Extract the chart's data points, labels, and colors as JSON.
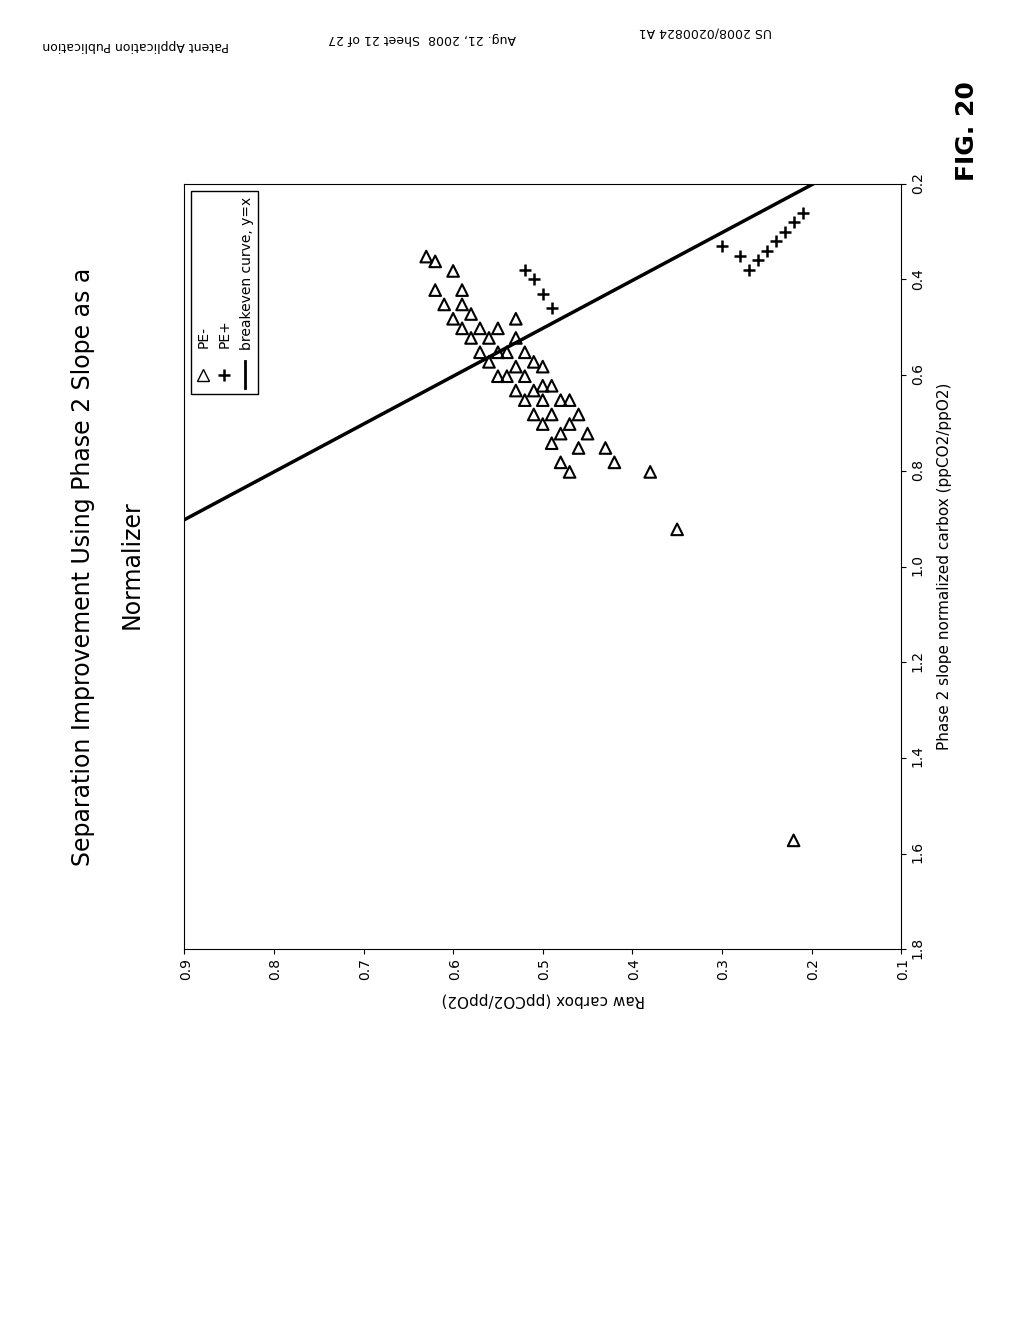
{
  "header_left": "Patent Application Publication",
  "header_mid": "Aug. 21, 2008  Sheet 21 of 27",
  "header_right": "US 2008/0200824 A1",
  "title_line1": "Separation Improvement Using Phase 2 Slope as a",
  "title_line2": "Normalizer",
  "xlabel": "Phase 2 slope normalized carbox (ppCO2/ppO2)",
  "ylabel": "Raw carbox (ppCO2/ppO2)",
  "fig_label": "FIG. 20",
  "xlim": [
    0.2,
    1.8
  ],
  "ylim": [
    0.1,
    0.9
  ],
  "xticks": [
    0.2,
    0.4,
    0.6,
    0.8,
    1.0,
    1.2,
    1.4,
    1.6,
    1.8
  ],
  "yticks": [
    0.1,
    0.2,
    0.3,
    0.4,
    0.5,
    0.6,
    0.7,
    0.8,
    0.9
  ],
  "pe_minus_x": [
    1.57,
    0.92,
    0.8,
    0.78,
    0.75,
    0.72,
    0.75,
    0.68,
    0.8,
    0.7,
    0.65,
    0.78,
    0.72,
    0.65,
    0.74,
    0.68,
    0.62,
    0.7,
    0.65,
    0.62,
    0.58,
    0.68,
    0.63,
    0.57,
    0.65,
    0.6,
    0.55,
    0.63,
    0.58,
    0.52,
    0.48,
    0.6,
    0.55,
    0.6,
    0.55,
    0.5,
    0.57,
    0.52,
    0.55,
    0.5,
    0.52,
    0.47,
    0.5,
    0.45,
    0.48,
    0.45,
    0.42,
    0.42,
    0.38,
    0.36,
    0.35
  ],
  "pe_minus_y": [
    0.22,
    0.35,
    0.38,
    0.42,
    0.43,
    0.45,
    0.46,
    0.46,
    0.47,
    0.47,
    0.47,
    0.48,
    0.48,
    0.48,
    0.49,
    0.49,
    0.49,
    0.5,
    0.5,
    0.5,
    0.5,
    0.51,
    0.51,
    0.51,
    0.52,
    0.52,
    0.52,
    0.53,
    0.53,
    0.53,
    0.53,
    0.54,
    0.54,
    0.55,
    0.55,
    0.55,
    0.56,
    0.56,
    0.57,
    0.57,
    0.58,
    0.58,
    0.59,
    0.59,
    0.6,
    0.61,
    0.62,
    0.59,
    0.6,
    0.62,
    0.63
  ],
  "pe_plus_x": [
    0.26,
    0.28,
    0.3,
    0.32,
    0.34,
    0.36,
    0.38,
    0.35,
    0.33,
    0.46,
    0.43,
    0.4,
    0.38
  ],
  "pe_plus_y": [
    0.21,
    0.22,
    0.23,
    0.24,
    0.25,
    0.26,
    0.27,
    0.28,
    0.3,
    0.49,
    0.5,
    0.51,
    0.52
  ],
  "background_color": "#ffffff",
  "marker_size": 70,
  "line_width": 2.5,
  "dpi": 100
}
